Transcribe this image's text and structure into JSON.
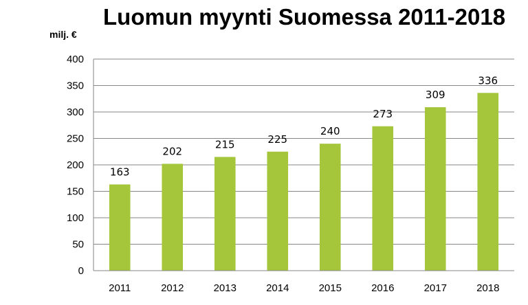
{
  "chart_data": {
    "type": "bar",
    "title": "Luomun myynti Suomessa 2011-2018",
    "ylabel": "milj. €",
    "xlabel": "",
    "categories": [
      "2011",
      "2012",
      "2013",
      "2014",
      "2015",
      "2016",
      "2017",
      "2018"
    ],
    "values": [
      163,
      202,
      215,
      225,
      240,
      273,
      309,
      336
    ],
    "data_labels": [
      "163",
      "202",
      "215",
      "225",
      "240",
      "273",
      "309",
      "336"
    ],
    "ylim": [
      0,
      400
    ],
    "yticks": [
      "0",
      "50",
      "100",
      "150",
      "200",
      "250",
      "300",
      "350",
      "400"
    ],
    "grid": true,
    "legend": "none",
    "bar_color": "#a5c63b",
    "grid_color": "#868686"
  }
}
